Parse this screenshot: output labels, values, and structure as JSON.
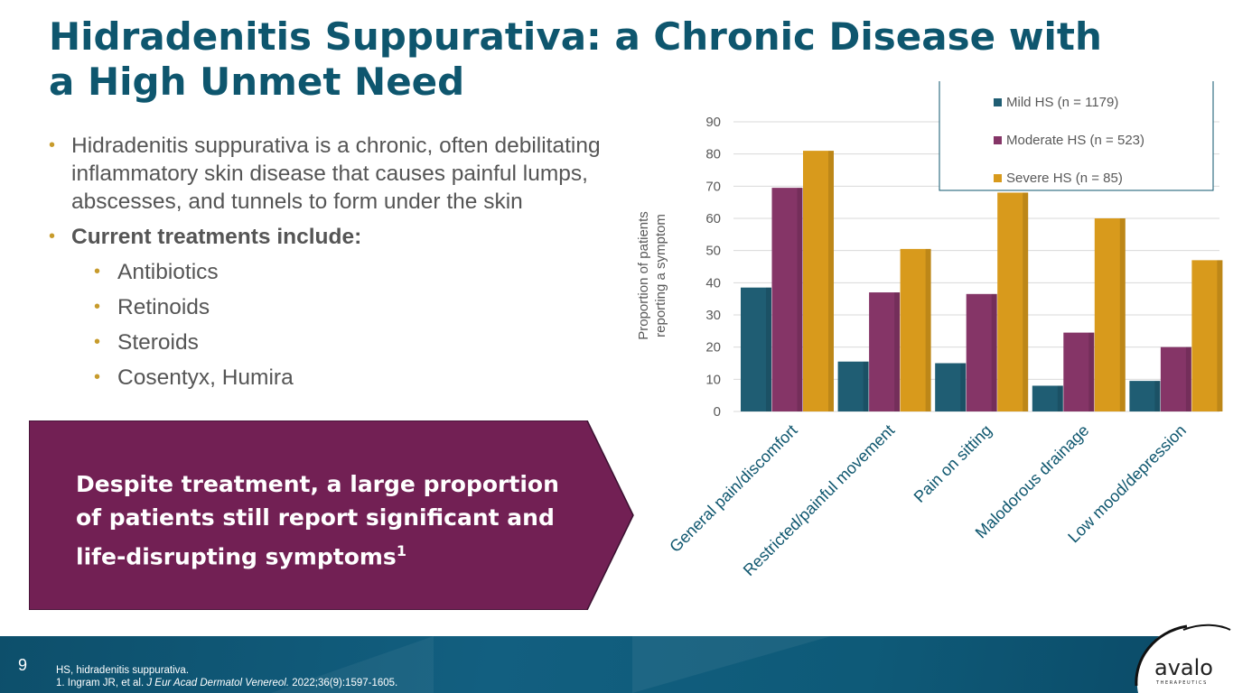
{
  "slide": {
    "title": "Hidradenitis Suppurativa: a Chronic Disease with a High Unmet Need",
    "page_number": "9"
  },
  "bullets": [
    {
      "text": "Hidradenitis suppurativa is a chronic, often debilitating inflammatory skin disease that causes painful lumps, abscesses, and tunnels to form under the skin"
    },
    {
      "text": "Current treatments include:"
    }
  ],
  "sub_bullets": [
    "Antibiotics",
    "Retinoids",
    "Steroids",
    "Cosentyx, Humira"
  ],
  "callout": {
    "text": "Despite treatment, a large proportion of patients still report significant and life-disrupting symptoms",
    "superscript": "1"
  },
  "footer": {
    "abbrev": "HS, hidradenitis suppurativa.",
    "ref_prefix": "1. Ingram JR, et al. ",
    "ref_journal": "J Eur Acad Dermatol Venereol.",
    "ref_suffix": " 2022;36(9):1597-1605.",
    "logo_text": "avalo",
    "logo_sub": "THERAPEUTICS"
  },
  "colors": {
    "title": "#0e566e",
    "callout": "#722054",
    "mild": "#1f5d73",
    "moderate": "#853567",
    "severe": "#d89a1c"
  },
  "chart_data": {
    "type": "bar",
    "title": "",
    "ylabel": "Proportion of patients reporting a symptom",
    "ylabel_lines": [
      "Proportion of patients",
      "reporting a symptom"
    ],
    "xlabel": "",
    "ylim": [
      0,
      90
    ],
    "yticks": [
      0,
      10,
      20,
      30,
      40,
      50,
      60,
      70,
      80,
      90
    ],
    "grid": true,
    "legend_position": "top-right",
    "categories": [
      "General pain/discomfort",
      "Restricted/painful movement",
      "Pain on sitting",
      "Malodorous drainage",
      "Low mood/depression"
    ],
    "series": [
      {
        "name": "Mild HS (n = 1179)",
        "color": "#1f5d73",
        "values": [
          38.5,
          15.5,
          15,
          8,
          9.5
        ]
      },
      {
        "name": "Moderate HS (n = 523)",
        "color": "#853567",
        "values": [
          69.5,
          37,
          36.5,
          24.5,
          20
        ]
      },
      {
        "name": "Severe HS (n = 85)",
        "color": "#d89a1c",
        "values": [
          81,
          50.5,
          68,
          60,
          47
        ]
      }
    ]
  }
}
